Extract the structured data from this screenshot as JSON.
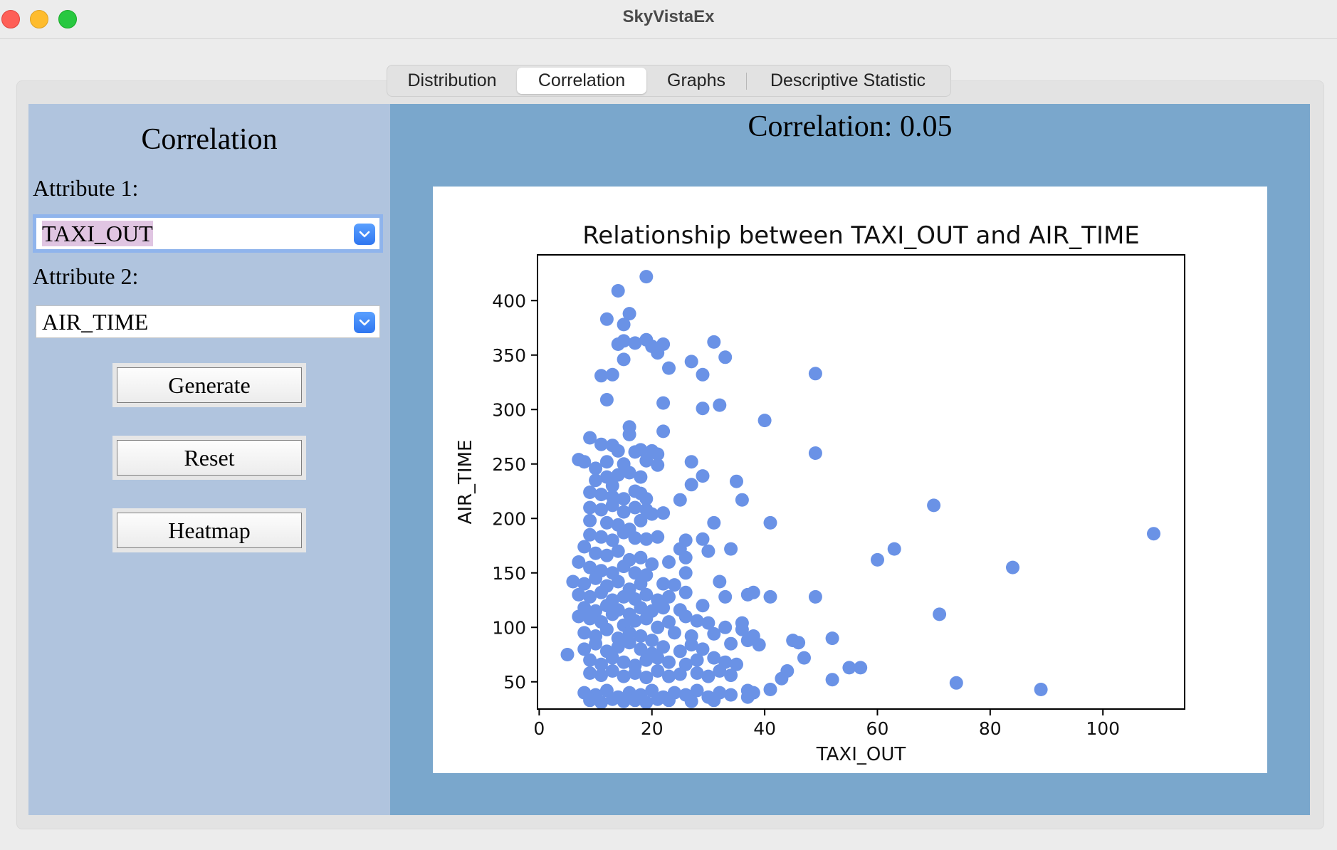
{
  "window": {
    "title": "SkyVistaEx"
  },
  "tabs": [
    {
      "label": "Distribution",
      "active": false
    },
    {
      "label": "Correlation",
      "active": true
    },
    {
      "label": "Graphs",
      "active": false
    },
    {
      "label": "Descriptive Statistic",
      "active": false
    }
  ],
  "left_panel": {
    "title": "Correlation",
    "attr1_label": "Attribute 1:",
    "attr1_value": "TAXI_OUT",
    "attr2_label": "Attribute 2:",
    "attr2_value": "AIR_TIME",
    "generate_label": "Generate",
    "reset_label": "Reset",
    "heatmap_label": "Heatmap"
  },
  "right_panel": {
    "correlation_text": "Correlation: 0.05"
  },
  "colors": {
    "point": "#6a92e6",
    "left_bg": "#b0c4de",
    "right_bg": "#7aa7cc",
    "accent": "#2f76f0"
  },
  "chart_data": {
    "type": "scatter",
    "title": "Relationship between TAXI_OUT and AIR_TIME",
    "xlabel": "TAXI_OUT",
    "ylabel": "AIR_TIME",
    "xlim": [
      -0.3,
      114.5
    ],
    "ylim": [
      25,
      442
    ],
    "xticks": [
      0,
      20,
      40,
      60,
      80,
      100
    ],
    "yticks": [
      50,
      100,
      150,
      200,
      250,
      300,
      350,
      400
    ],
    "grid": false,
    "series": [
      {
        "color": "#6a92e6",
        "points": [
          [
            19,
            422
          ],
          [
            14,
            409
          ],
          [
            16,
            388
          ],
          [
            12,
            383
          ],
          [
            15,
            378
          ],
          [
            14,
            360
          ],
          [
            15,
            363
          ],
          [
            17,
            361
          ],
          [
            19,
            364
          ],
          [
            20,
            358
          ],
          [
            21,
            352
          ],
          [
            22,
            360
          ],
          [
            15,
            346
          ],
          [
            23,
            338
          ],
          [
            11,
            331
          ],
          [
            13,
            332
          ],
          [
            31,
            362
          ],
          [
            33,
            348
          ],
          [
            27,
            344
          ],
          [
            29,
            332
          ],
          [
            49,
            333
          ],
          [
            12,
            309
          ],
          [
            22,
            306
          ],
          [
            32,
            304
          ],
          [
            29,
            301
          ],
          [
            40,
            290
          ],
          [
            16,
            284
          ],
          [
            16,
            277
          ],
          [
            22,
            280
          ],
          [
            9,
            274
          ],
          [
            7,
            254
          ],
          [
            8,
            252
          ],
          [
            11,
            268
          ],
          [
            13,
            267
          ],
          [
            14,
            262
          ],
          [
            17,
            261
          ],
          [
            18,
            263
          ],
          [
            20,
            262
          ],
          [
            21,
            259
          ],
          [
            10,
            246
          ],
          [
            12,
            252
          ],
          [
            15,
            250
          ],
          [
            19,
            253
          ],
          [
            21,
            249
          ],
          [
            27,
            252
          ],
          [
            49,
            260
          ],
          [
            29,
            239
          ],
          [
            27,
            231
          ],
          [
            10,
            235
          ],
          [
            12,
            238
          ],
          [
            14,
            240
          ],
          [
            16,
            242
          ],
          [
            18,
            238
          ],
          [
            13,
            230
          ],
          [
            35,
            234
          ],
          [
            9,
            224
          ],
          [
            11,
            222
          ],
          [
            13,
            220
          ],
          [
            15,
            218
          ],
          [
            17,
            225
          ],
          [
            18,
            223
          ],
          [
            19,
            218
          ],
          [
            25,
            217
          ],
          [
            36,
            217
          ],
          [
            70,
            212
          ],
          [
            9,
            210
          ],
          [
            11,
            208
          ],
          [
            13,
            212
          ],
          [
            15,
            206
          ],
          [
            17,
            210
          ],
          [
            19,
            208
          ],
          [
            20,
            204
          ],
          [
            22,
            205
          ],
          [
            9,
            198
          ],
          [
            12,
            196
          ],
          [
            14,
            194
          ],
          [
            16,
            190
          ],
          [
            18,
            198
          ],
          [
            31,
            196
          ],
          [
            41,
            196
          ],
          [
            109,
            186
          ],
          [
            9,
            185
          ],
          [
            11,
            183
          ],
          [
            13,
            180
          ],
          [
            15,
            187
          ],
          [
            17,
            182
          ],
          [
            19,
            181
          ],
          [
            21,
            183
          ],
          [
            26,
            180
          ],
          [
            29,
            181
          ],
          [
            25,
            172
          ],
          [
            30,
            170
          ],
          [
            34,
            172
          ],
          [
            8,
            174
          ],
          [
            10,
            168
          ],
          [
            12,
            166
          ],
          [
            14,
            170
          ],
          [
            16,
            162
          ],
          [
            18,
            164
          ],
          [
            20,
            158
          ],
          [
            23,
            160
          ],
          [
            26,
            164
          ],
          [
            63,
            172
          ],
          [
            60,
            162
          ],
          [
            7,
            160
          ],
          [
            9,
            155
          ],
          [
            11,
            152
          ],
          [
            13,
            150
          ],
          [
            15,
            156
          ],
          [
            17,
            150
          ],
          [
            19,
            148
          ],
          [
            26,
            150
          ],
          [
            84,
            155
          ],
          [
            6,
            142
          ],
          [
            8,
            140
          ],
          [
            10,
            145
          ],
          [
            12,
            138
          ],
          [
            14,
            142
          ],
          [
            16,
            135
          ],
          [
            18,
            140
          ],
          [
            22,
            140
          ],
          [
            24,
            139
          ],
          [
            32,
            142
          ],
          [
            7,
            130
          ],
          [
            9,
            128
          ],
          [
            11,
            132
          ],
          [
            13,
            125
          ],
          [
            15,
            128
          ],
          [
            17,
            126
          ],
          [
            19,
            130
          ],
          [
            21,
            125
          ],
          [
            23,
            128
          ],
          [
            26,
            132
          ],
          [
            33,
            128
          ],
          [
            37,
            130
          ],
          [
            38,
            132
          ],
          [
            41,
            128
          ],
          [
            49,
            128
          ],
          [
            8,
            118
          ],
          [
            10,
            115
          ],
          [
            12,
            120
          ],
          [
            14,
            116
          ],
          [
            16,
            112
          ],
          [
            18,
            118
          ],
          [
            20,
            115
          ],
          [
            22,
            118
          ],
          [
            25,
            116
          ],
          [
            29,
            120
          ],
          [
            7,
            110
          ],
          [
            9,
            108
          ],
          [
            11,
            105
          ],
          [
            13,
            112
          ],
          [
            15,
            102
          ],
          [
            17,
            106
          ],
          [
            19,
            108
          ],
          [
            21,
            100
          ],
          [
            23,
            105
          ],
          [
            26,
            110
          ],
          [
            28,
            106
          ],
          [
            30,
            104
          ],
          [
            33,
            100
          ],
          [
            36,
            104
          ],
          [
            71,
            112
          ],
          [
            8,
            95
          ],
          [
            10,
            92
          ],
          [
            12,
            98
          ],
          [
            14,
            90
          ],
          [
            16,
            95
          ],
          [
            18,
            92
          ],
          [
            20,
            88
          ],
          [
            24,
            95
          ],
          [
            27,
            92
          ],
          [
            31,
            94
          ],
          [
            36,
            98
          ],
          [
            38,
            92
          ],
          [
            5,
            75
          ],
          [
            8,
            80
          ],
          [
            10,
            85
          ],
          [
            12,
            78
          ],
          [
            14,
            82
          ],
          [
            16,
            86
          ],
          [
            18,
            80
          ],
          [
            20,
            76
          ],
          [
            22,
            82
          ],
          [
            25,
            78
          ],
          [
            27,
            84
          ],
          [
            29,
            80
          ],
          [
            34,
            85
          ],
          [
            37,
            88
          ],
          [
            39,
            84
          ],
          [
            45,
            88
          ],
          [
            46,
            86
          ],
          [
            52,
            90
          ],
          [
            9,
            70
          ],
          [
            11,
            66
          ],
          [
            13,
            72
          ],
          [
            15,
            68
          ],
          [
            17,
            65
          ],
          [
            19,
            70
          ],
          [
            21,
            72
          ],
          [
            23,
            68
          ],
          [
            26,
            66
          ],
          [
            28,
            70
          ],
          [
            31,
            72
          ],
          [
            33,
            68
          ],
          [
            35,
            66
          ],
          [
            47,
            72
          ],
          [
            55,
            63
          ],
          [
            57,
            63
          ],
          [
            9,
            58
          ],
          [
            11,
            56
          ],
          [
            13,
            60
          ],
          [
            15,
            55
          ],
          [
            17,
            58
          ],
          [
            19,
            54
          ],
          [
            21,
            60
          ],
          [
            23,
            55
          ],
          [
            25,
            57
          ],
          [
            28,
            58
          ],
          [
            30,
            55
          ],
          [
            32,
            60
          ],
          [
            34,
            56
          ],
          [
            44,
            60
          ],
          [
            43,
            53
          ],
          [
            52,
            52
          ],
          [
            8,
            40
          ],
          [
            10,
            38
          ],
          [
            12,
            42
          ],
          [
            14,
            36
          ],
          [
            16,
            40
          ],
          [
            18,
            38
          ],
          [
            20,
            42
          ],
          [
            22,
            36
          ],
          [
            24,
            40
          ],
          [
            26,
            38
          ],
          [
            28,
            42
          ],
          [
            30,
            36
          ],
          [
            32,
            40
          ],
          [
            34,
            38
          ],
          [
            37,
            42
          ],
          [
            38,
            40
          ],
          [
            41,
            43
          ],
          [
            74,
            49
          ],
          [
            89,
            43
          ],
          [
            9,
            33
          ],
          [
            11,
            31
          ],
          [
            13,
            34
          ],
          [
            15,
            32
          ],
          [
            17,
            33
          ],
          [
            19,
            31
          ],
          [
            21,
            34
          ],
          [
            23,
            33
          ],
          [
            27,
            32
          ],
          [
            31,
            33
          ],
          [
            37,
            36
          ]
        ]
      }
    ]
  }
}
